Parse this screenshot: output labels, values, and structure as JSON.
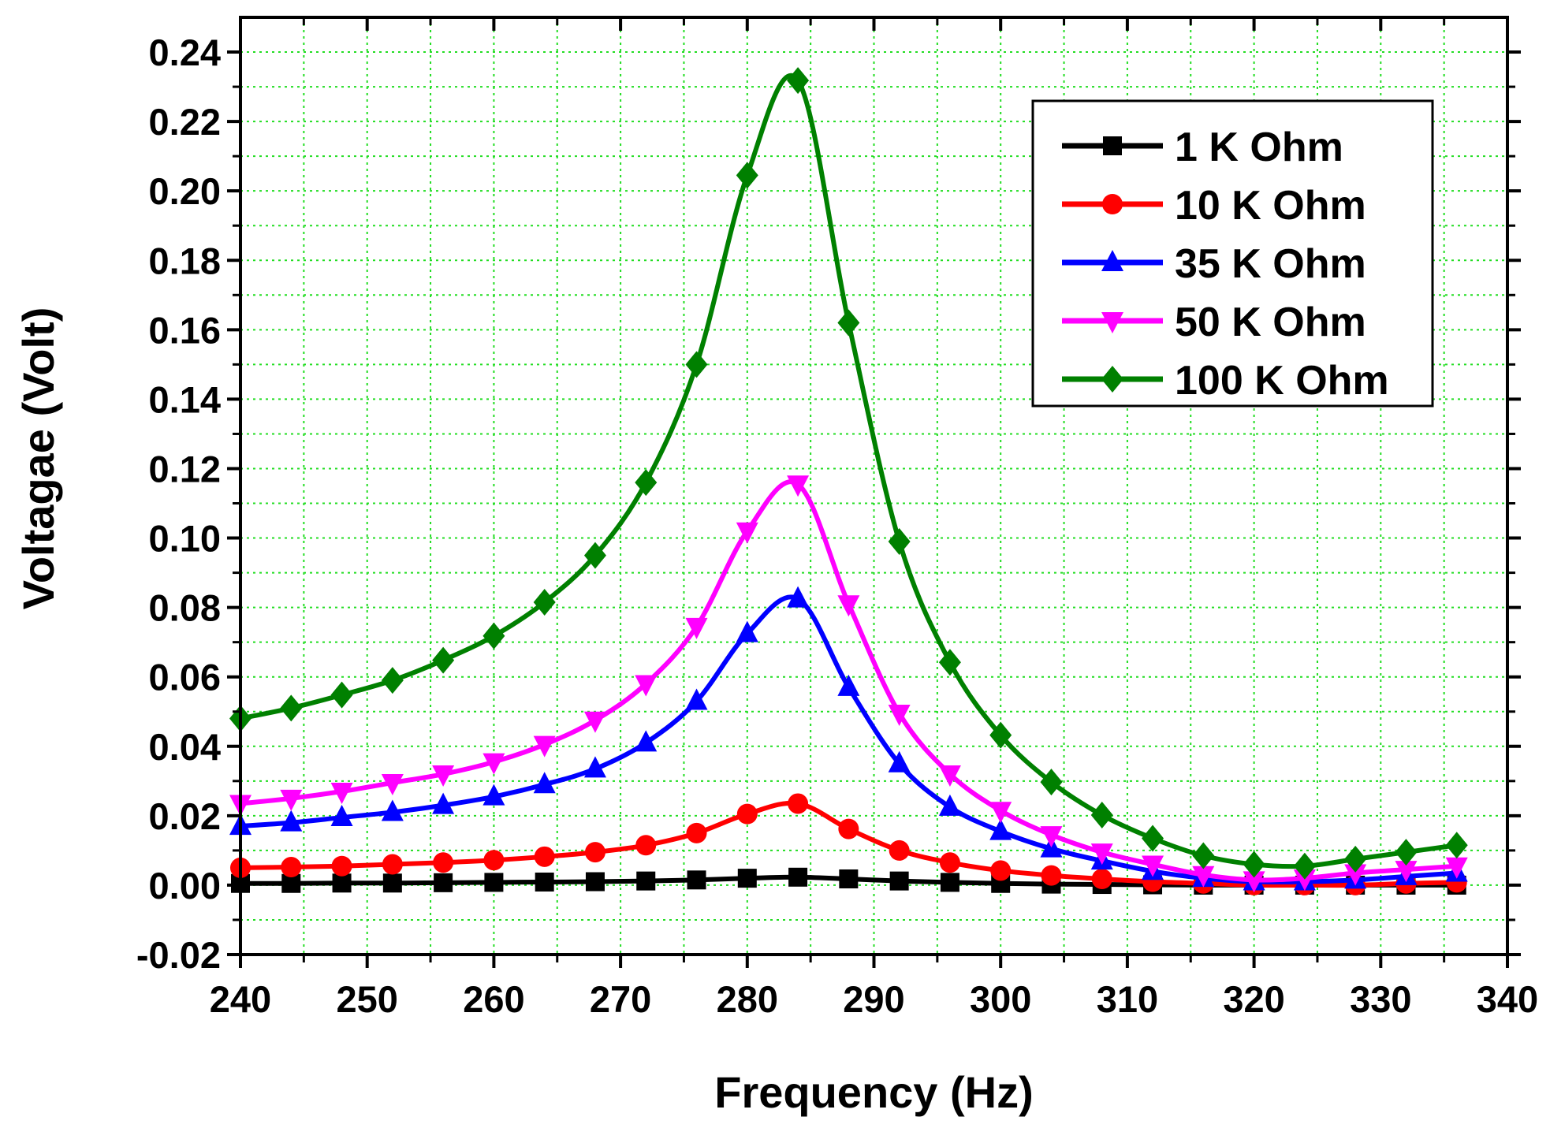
{
  "chart_data": {
    "type": "line",
    "title": "",
    "xlabel": "Frequency (Hz)",
    "ylabel": "Voltagae (Volt)",
    "xlim": [
      240,
      340
    ],
    "ylim": [
      -0.02,
      0.25
    ],
    "xticks": [
      240,
      250,
      260,
      270,
      280,
      290,
      300,
      310,
      320,
      330,
      340
    ],
    "xtick_labels": [
      "240",
      "250",
      "260",
      "270",
      "280",
      "290",
      "300",
      "310",
      "320",
      "330",
      "340"
    ],
    "yticks": [
      -0.02,
      0.0,
      0.02,
      0.04,
      0.06,
      0.08,
      0.1,
      0.12,
      0.14,
      0.16,
      0.18,
      0.2,
      0.22,
      0.24
    ],
    "ytick_labels": [
      "-0.02",
      "0.00",
      "0.02",
      "0.04",
      "0.06",
      "0.08",
      "0.10",
      "0.12",
      "0.14",
      "0.16",
      "0.18",
      "0.20",
      "0.22",
      "0.24"
    ],
    "grid": true,
    "grid_color": "#22dd22",
    "legend_position": "top-right",
    "x": [
      240,
      244,
      248,
      252,
      256,
      260,
      264,
      268,
      272,
      276,
      280,
      284,
      288,
      292,
      296,
      300,
      304,
      308,
      312,
      316,
      320,
      324,
      328,
      332,
      336
    ],
    "series": [
      {
        "name": "1 K Ohm",
        "color": "#000000",
        "marker": "square",
        "values": [
          0.0005,
          0.0005,
          0.0006,
          0.0006,
          0.0007,
          0.0008,
          0.0009,
          0.001,
          0.0012,
          0.0015,
          0.002,
          0.0023,
          0.0018,
          0.0012,
          0.0008,
          0.0005,
          0.0003,
          0.0002,
          0.0001,
          0.0,
          0.0,
          0.0,
          0.0,
          0.0,
          0.0
        ]
      },
      {
        "name": "10 K Ohm",
        "color": "#ff0000",
        "marker": "circle",
        "values": [
          0.005,
          0.0052,
          0.0055,
          0.006,
          0.0065,
          0.0072,
          0.0082,
          0.0095,
          0.0115,
          0.015,
          0.0205,
          0.0235,
          0.0162,
          0.01,
          0.0065,
          0.0042,
          0.0028,
          0.0018,
          0.001,
          0.0005,
          0.0,
          0.0,
          0.0,
          0.0005,
          0.0008
        ]
      },
      {
        "name": "35 K Ohm",
        "color": "#0000ff",
        "marker": "triangle-up",
        "values": [
          0.017,
          0.018,
          0.0195,
          0.021,
          0.023,
          0.0255,
          0.029,
          0.0335,
          0.041,
          0.053,
          0.0725,
          0.0825,
          0.057,
          0.035,
          0.0225,
          0.0155,
          0.0105,
          0.007,
          0.004,
          0.002,
          0.001,
          0.001,
          0.0015,
          0.0025,
          0.0035
        ]
      },
      {
        "name": "50 K Ohm",
        "color": "#ff00ff",
        "marker": "triangle-down",
        "values": [
          0.0235,
          0.025,
          0.027,
          0.0295,
          0.032,
          0.0355,
          0.0405,
          0.0475,
          0.058,
          0.0745,
          0.102,
          0.1155,
          0.081,
          0.0495,
          0.032,
          0.0215,
          0.0145,
          0.0095,
          0.006,
          0.003,
          0.0015,
          0.002,
          0.0035,
          0.0045,
          0.0055
        ]
      },
      {
        "name": "100 K Ohm",
        "color": "#008000",
        "marker": "diamond",
        "values": [
          0.048,
          0.051,
          0.0548,
          0.059,
          0.0648,
          0.0718,
          0.0815,
          0.095,
          0.116,
          0.15,
          0.2045,
          0.2318,
          0.162,
          0.099,
          0.0642,
          0.0432,
          0.0297,
          0.0202,
          0.0135,
          0.0085,
          0.006,
          0.0055,
          0.0075,
          0.0095,
          0.0115
        ]
      }
    ]
  }
}
